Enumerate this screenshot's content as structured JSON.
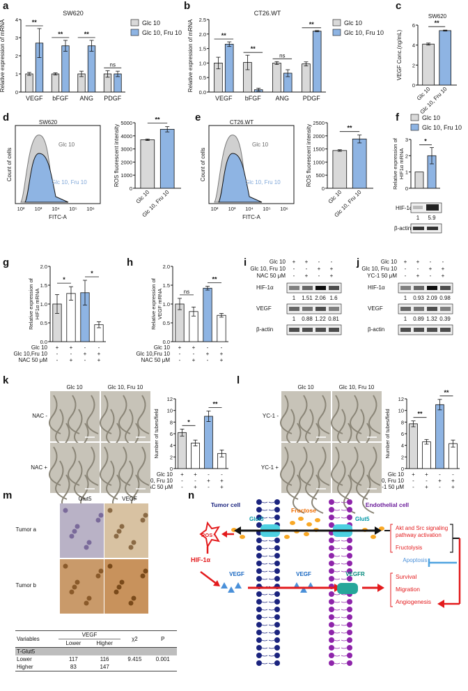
{
  "panels": {
    "a": "a",
    "b": "b",
    "c": "c",
    "d": "d",
    "e": "e",
    "f": "f",
    "g": "g",
    "h": "h",
    "i": "i",
    "j": "j",
    "k": "k",
    "l": "l",
    "m": "m",
    "n": "n"
  },
  "legend": {
    "glc": "Glc 10",
    "fru": "Glc 10, Fru 10"
  },
  "colors": {
    "glc": "#d9d9d9",
    "fru": "#8eb4e3",
    "red": "#e31a1c",
    "blue": "#1f3fbf"
  },
  "chart_data": [
    {
      "panel": "a",
      "type": "bar",
      "title": "SW620",
      "ylabel": "Relative expression of mRNA",
      "ylim": [
        0,
        4
      ],
      "yticks": [
        "0",
        "1",
        "2",
        "3",
        "4"
      ],
      "categories": [
        "VEGF",
        "bFGF",
        "ANG",
        "PDGF"
      ],
      "series": [
        {
          "name": "Glc 10",
          "values": [
            1.0,
            1.0,
            1.0,
            1.0
          ],
          "errors": [
            0.08,
            0.06,
            0.15,
            0.18
          ]
        },
        {
          "name": "Glc 10, Fru 10",
          "values": [
            2.7,
            2.55,
            2.55,
            1.0
          ],
          "errors": [
            0.8,
            0.3,
            0.3,
            0.15
          ]
        }
      ],
      "significance": [
        "**",
        "**",
        "**",
        "ns"
      ]
    },
    {
      "panel": "b",
      "type": "bar",
      "title": "CT26.WT",
      "ylabel": "Relative expression of mRNA",
      "ylim": [
        0,
        2.5
      ],
      "yticks": [
        "0.0",
        "0.5",
        "1.0",
        "1.5",
        "2.0",
        "2.5"
      ],
      "categories": [
        "VEGF",
        "bFGF",
        "ANG",
        "PDGF"
      ],
      "series": [
        {
          "name": "Glc 10",
          "values": [
            1.0,
            1.02,
            1.0,
            0.97
          ],
          "errors": [
            0.2,
            0.25,
            0.05,
            0.07
          ]
        },
        {
          "name": "Glc 10, Fru 10",
          "values": [
            1.65,
            0.08,
            0.65,
            2.1
          ],
          "errors": [
            0.08,
            0.05,
            0.12,
            0.02
          ]
        }
      ],
      "significance": [
        "**",
        "**",
        "ns",
        "**"
      ]
    },
    {
      "panel": "c",
      "type": "bar",
      "title": "SW620",
      "ylabel": "VEGF Conc.(ng/mL)",
      "ylim": [
        0,
        6
      ],
      "yticks": [
        "0",
        "2",
        "4",
        "6"
      ],
      "categories": [
        "Glc 10",
        "Glc 10, Fru 10"
      ],
      "values": [
        4.1,
        5.45
      ],
      "errors": [
        0.1,
        0.05
      ],
      "significance": "**"
    },
    {
      "panel": "d",
      "type": "bar",
      "ylabel": "ROS fluorescent intensity",
      "ylim": [
        0,
        5000
      ],
      "yticks": [
        "0",
        "1000",
        "2000",
        "3000",
        "4000",
        "5000"
      ],
      "categories": [
        "Glc 10",
        "Glc 10, Fru 10"
      ],
      "values": [
        3700,
        4500
      ],
      "errors": [
        60,
        200
      ],
      "significance": "**"
    },
    {
      "panel": "e",
      "type": "bar",
      "ylabel": "ROS fluorescent intensity",
      "ylim": [
        0,
        2500
      ],
      "yticks": [
        "0",
        "500",
        "1000",
        "1500",
        "2000",
        "2500"
      ],
      "categories": [
        "Glc 10",
        "Glc 10, Fru 10"
      ],
      "values": [
        1440,
        1880
      ],
      "errors": [
        30,
        150
      ],
      "significance": "**"
    },
    {
      "panel": "f",
      "type": "bar",
      "ylabel": "Relative expression of HIF1α mRNA",
      "ylim": [
        0,
        3
      ],
      "yticks": [
        "0",
        "1",
        "2",
        "3"
      ],
      "categories": [
        "Glc 10",
        "Glc 10, Fru 10"
      ],
      "values": [
        1.0,
        2.0
      ],
      "errors": [
        0,
        0.5
      ],
      "significance": "*"
    },
    {
      "panel": "g",
      "type": "bar",
      "ylabel": "Relative expression of HIF1α mRNA",
      "ylim": [
        0,
        2.0
      ],
      "yticks": [
        "0.0",
        "0.5",
        "1.0",
        "1.5",
        "2.0"
      ],
      "values": [
        1.0,
        1.28,
        1.3,
        0.45
      ],
      "errors": [
        0.25,
        0.18,
        0.33,
        0.08
      ],
      "fills": [
        "glc",
        "white",
        "fru",
        "white"
      ],
      "significance": [
        "*",
        "*"
      ]
    },
    {
      "panel": "h",
      "type": "bar",
      "ylabel": "Relative expression of VEGF mRNA",
      "ylim": [
        0,
        2.0
      ],
      "yticks": [
        "0.0",
        "0.5",
        "1.0",
        "1.5",
        "2.0"
      ],
      "values": [
        1.0,
        0.8,
        1.42,
        0.7
      ],
      "errors": [
        0.15,
        0.12,
        0.05,
        0.05
      ],
      "fills": [
        "glc",
        "white",
        "fru",
        "white"
      ],
      "significance": [
        "ns",
        "**"
      ]
    },
    {
      "panel": "k",
      "type": "bar",
      "ylabel": "Number of tubes/field",
      "ylim": [
        0,
        12
      ],
      "yticks": [
        "0",
        "2",
        "4",
        "6",
        "8",
        "10",
        "12"
      ],
      "values": [
        6.2,
        4.4,
        9.0,
        2.6
      ],
      "errors": [
        0.6,
        0.5,
        0.9,
        0.6
      ],
      "fills": [
        "glc",
        "white",
        "fru",
        "white"
      ],
      "significance": [
        "*",
        "**"
      ]
    },
    {
      "panel": "l",
      "type": "bar",
      "ylabel": "Number of tubes/field",
      "ylim": [
        0,
        12
      ],
      "yticks": [
        "0",
        "2",
        "4",
        "6",
        "8",
        "10",
        "12"
      ],
      "values": [
        7.7,
        4.6,
        11.0,
        4.3
      ],
      "errors": [
        0.5,
        0.4,
        0.9,
        0.6
      ],
      "fills": [
        "glc",
        "white",
        "fru",
        "white"
      ],
      "significance": [
        "**",
        "**"
      ]
    }
  ],
  "treatment_rows": {
    "glc": "Glc 10",
    "glc_fru": "Glc 10, Fru 10",
    "glc_fru_g": "Glc 10,Fru 10",
    "nac": "NAC 50 μM",
    "yc1": "YC-1 50 μM",
    "g_glc": [
      "+",
      "+",
      "-",
      "-"
    ],
    "g_fru": [
      "-",
      "-",
      "+",
      "+"
    ],
    "g_nac": [
      "-",
      "+",
      "-",
      "+"
    ]
  },
  "flow": {
    "d": {
      "title": "SW620",
      "glc": "Glc 10",
      "fru": "Glc 10, Fru 10",
      "ylabel": "Count of cells",
      "xlabel": "FITC-A",
      "ticks": [
        "10²",
        "10³",
        "10⁴",
        "10⁵",
        "10⁶"
      ]
    },
    "e": {
      "title": "CT26.WT",
      "glc": "Glc 10",
      "fru": "Glc 10, Fru 10",
      "ylabel": "Count of cells",
      "xlabel": "FITC-A",
      "ticks": [
        "10²",
        "10³",
        "10⁴",
        "10⁵",
        "10⁶"
      ]
    }
  },
  "blots": {
    "f": {
      "hif": "HIF-1α",
      "actin": "β-actin",
      "q": [
        "1",
        "5.9"
      ]
    },
    "i": {
      "hif": "HIF-1α",
      "vegf": "VEGF",
      "actin": "β-actin",
      "q1": [
        "1",
        "1.51",
        "2.06",
        "1.6"
      ],
      "q2": [
        "1",
        "0.88",
        "1.22",
        "0.81"
      ]
    },
    "j": {
      "hif": "HIF-1α",
      "vegf": "VEGF",
      "actin": "β-actin",
      "q1": [
        "1",
        "0.93",
        "2.09",
        "0.98"
      ],
      "q2": [
        "1",
        "0.89",
        "1.32",
        "0.39"
      ]
    }
  },
  "micro": {
    "k": {
      "col1": "Glc 10",
      "col2": "Glc 10, Fru 10",
      "row1": "NAC -",
      "row2": "NAC +"
    },
    "l": {
      "col1": "Glc 10",
      "col2": "Glc 10, Fru 10",
      "row1": "YC-1 -",
      "row2": "YC-1 +"
    }
  },
  "ihc": {
    "col1": "Glut5",
    "col2": "VEGF",
    "row1": "Tumor a",
    "row2": "Tumor b"
  },
  "ihc_table": {
    "header": [
      "Variables",
      "VEGF",
      "χ2",
      "P"
    ],
    "sub": [
      "Lower",
      "Higher"
    ],
    "group": "T-Glut5",
    "rows": [
      {
        "label": "Lower",
        "lower": "117",
        "higher": "116",
        "chi": "9.415",
        "p": "0.001"
      },
      {
        "label": "Higher",
        "lower": "83",
        "higher": "147",
        "chi": "",
        "p": ""
      }
    ]
  },
  "diagram": {
    "tumor": "Tumor cell",
    "fructose": "Fructose",
    "endo": "Endothelial cell",
    "glut5a": "Glut5",
    "glut5b": "Glut5",
    "ros": "ROS↑",
    "hif": "HIF-1α",
    "vegf1": "VEGF",
    "vegf2": "VEGF",
    "vegfr": "VEGFR",
    "akt": "Akt and Src signaling pathway activation",
    "fructolysis": "Fructolysis",
    "apoptosis": "Apoptosis",
    "survival": "Survival",
    "migration": "Migration",
    "angiogenesis": "Angiogenesis"
  }
}
